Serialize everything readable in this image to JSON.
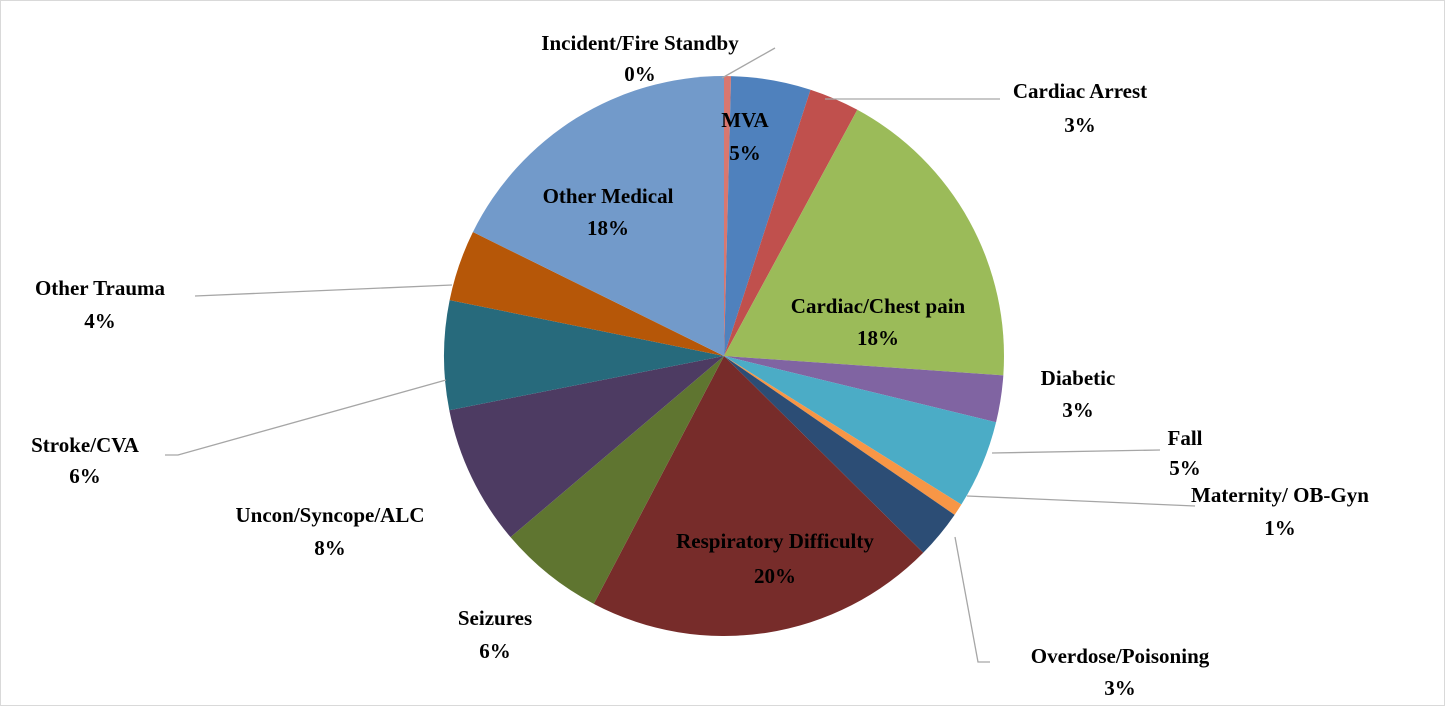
{
  "chart_data": {
    "type": "pie",
    "categories": [
      "Incident/Fire Standby",
      "MVA",
      "Cardiac Arrest",
      "Cardiac/Chest pain",
      "Diabetic",
      "Fall",
      "Maternity/ OB-Gyn",
      "Overdose/Poisoning",
      "Respiratory Difficulty",
      "Seizures",
      "Uncon/Syncope/ALC",
      "Stroke/CVA",
      "Other Trauma",
      "Other Medical"
    ],
    "values": [
      0.4,
      4.6,
      2.9,
      18.2,
      2.7,
      5.1,
      0.7,
      2.8,
      20.3,
      6.1,
      8.1,
      6.3,
      4.1,
      17.7
    ],
    "value_labels": [
      "0%",
      "5%",
      "3%",
      "18%",
      "3%",
      "5%",
      "1%",
      "3%",
      "20%",
      "6%",
      "8%",
      "6%",
      "4%",
      "18%"
    ],
    "colors": [
      "#d9776f",
      "#4f81bd",
      "#c0504d",
      "#9bbb59",
      "#8064a2",
      "#4bacc6",
      "#f79646",
      "#2c4d75",
      "#772c2a",
      "#5f7530",
      "#4d3b62",
      "#276a7c",
      "#b65708",
      "#729aca"
    ]
  }
}
